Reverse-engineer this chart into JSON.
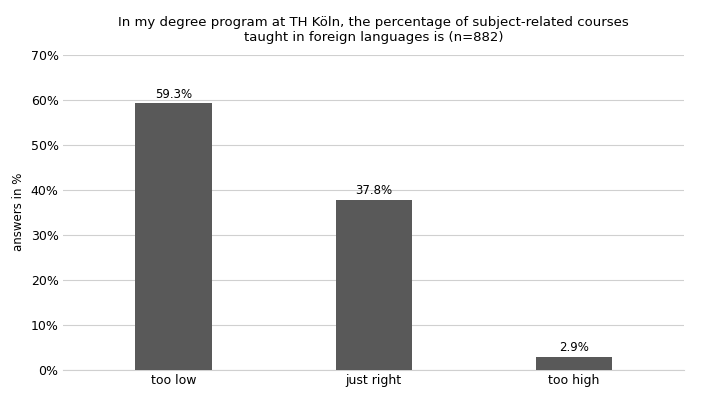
{
  "title_line1": "In my degree program at TH Köln, the percentage of subject-related courses",
  "title_line2": "taught in foreign languages is (n=882)",
  "categories": [
    "too low",
    "just right",
    "too high"
  ],
  "values": [
    59.3,
    37.8,
    2.9
  ],
  "bar_color": "#595959",
  "ylabel": "answers in %",
  "ylim": [
    0,
    70
  ],
  "yticks": [
    0,
    10,
    20,
    30,
    40,
    50,
    60,
    70
  ],
  "ytick_labels": [
    "0%",
    "10%",
    "20%",
    "30%",
    "40%",
    "50%",
    "60%",
    "70%"
  ],
  "label_fontsize": 9,
  "title_fontsize": 9.5,
  "ylabel_fontsize": 8.5,
  "background_color": "#ffffff",
  "grid_color": "#d0d0d0",
  "bar_width": 0.38,
  "annotation_fontsize": 8.5
}
